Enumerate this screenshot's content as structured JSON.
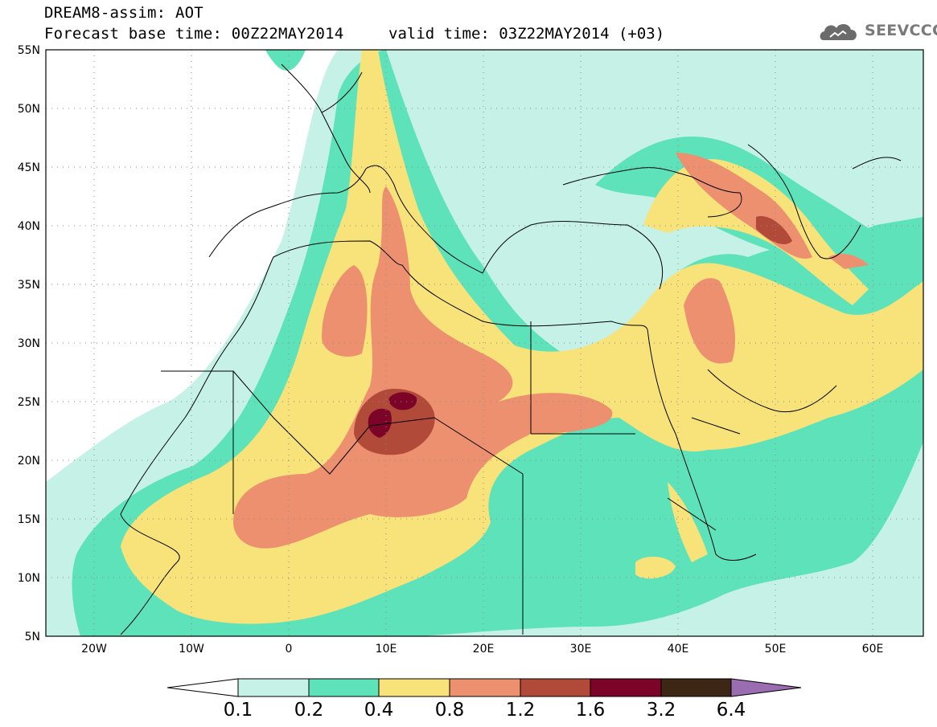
{
  "header": {
    "title": "DREAM8-assim: AOT",
    "base_time": "Forecast base time: 00Z22MAY2014",
    "valid_time": "valid time: 03Z22MAY2014 (+03)"
  },
  "logo": {
    "text": "SEEVCCC",
    "icon": "cloud-icon"
  },
  "axes": {
    "lat_labels": [
      "55N",
      "50N",
      "45N",
      "40N",
      "35N",
      "30N",
      "25N",
      "20N",
      "15N",
      "10N",
      "5N"
    ],
    "lon_labels": [
      "20W",
      "10W",
      "0",
      "10E",
      "20E",
      "30E",
      "40E",
      "50E",
      "60E"
    ],
    "lat_range": [
      5,
      55
    ],
    "lon_range": [
      -25,
      65
    ]
  },
  "colorbar": {
    "labels": [
      "0.1",
      "0.2",
      "0.4",
      "0.8",
      "1.2",
      "1.6",
      "3.2",
      "6.4"
    ],
    "colors": [
      "#ffffff",
      "#c6f1e7",
      "#5de2b9",
      "#f8e27a",
      "#ec9070",
      "#b24a3a",
      "#7c0428",
      "#3e2614",
      "#9a6cb0"
    ]
  },
  "fields": {
    "levels": [
      {
        "name": "aot-0.1-0.2",
        "color": "#c6f1e7"
      },
      {
        "name": "aot-0.2-0.4",
        "color": "#5de2b9"
      },
      {
        "name": "aot-0.4-0.8",
        "color": "#f8e27a"
      },
      {
        "name": "aot-0.8-1.2",
        "color": "#ec9070"
      },
      {
        "name": "aot-1.2-1.6",
        "color": "#b24a3a"
      },
      {
        "name": "aot-1.6-3.2",
        "color": "#7c0428"
      }
    ]
  }
}
